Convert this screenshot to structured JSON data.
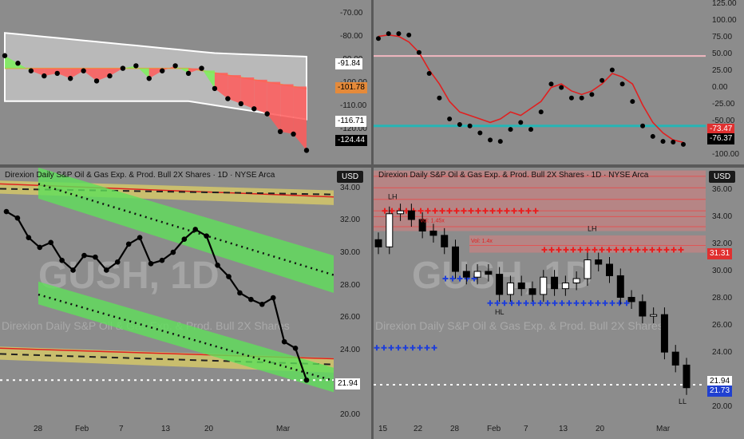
{
  "tl": {
    "ticks": [
      "-70.00",
      "-80.00",
      "-90.00",
      "-100.00",
      "-110.00",
      "-120.00"
    ],
    "tags": [
      {
        "text": "-91.84",
        "bg": "#ffffff",
        "fg": "#000000"
      },
      {
        "text": "-101.78",
        "bg": "#e58a3a",
        "fg": "#000000"
      },
      {
        "text": "-116.71",
        "bg": "#ffffff",
        "fg": "#000000"
      },
      {
        "text": "-124.44",
        "bg": "#000000",
        "fg": "#ffffff"
      }
    ]
  },
  "tr": {
    "ticks": [
      "125.00",
      "100.00",
      "75.00",
      "50.00",
      "25.00",
      "0.00",
      "-25.00",
      "-50.00",
      "-75.00",
      "-100.00"
    ],
    "tags": [
      {
        "text": "-73.47",
        "bg": "#e03030",
        "fg": "#ffffff"
      },
      {
        "text": "-76.37",
        "bg": "#000000",
        "fg": "#ffffff"
      }
    ]
  },
  "bl": {
    "title": "Direxion Daily S&P Oil & Gas Exp. & Prod. Bull 2X Shares · 1D · NYSE Arca",
    "currency": "USD",
    "watermark": "GUSH, 1D",
    "watermark_sub": "Direxion Daily S&P Oil & Gas Exp. & Prod. Bull 2X Shares",
    "ticks": [
      "34.00",
      "32.00",
      "30.00",
      "28.00",
      "26.00",
      "24.00",
      "20.00"
    ],
    "price_tag": "21.94",
    "xlabels": [
      "28",
      "Feb",
      "7",
      "13",
      "20",
      "Mar"
    ]
  },
  "br": {
    "title": "Direxion Daily S&P Oil & Gas Exp. & Prod. Bull 2X Shares · 1D · NYSE Arca",
    "currency": "USD",
    "watermark": "GUSH, 1D",
    "watermark_sub": "Direxion Daily S&P Oil & Gas Exp. & Prod. Bull 2X Shares",
    "ticks": [
      "36.00",
      "34.00",
      "32.00",
      "30.00",
      "28.00",
      "26.00",
      "24.00",
      "22.00",
      "20.00"
    ],
    "tags": [
      {
        "text": "31.31",
        "bg": "#e03030",
        "fg": "#ffffff"
      },
      {
        "text": "21.94",
        "bg": "#ffffff",
        "fg": "#000000"
      },
      {
        "text": "21.73",
        "bg": "#2040d0",
        "fg": "#ffffff"
      }
    ],
    "annotations": {
      "lh1": "LH",
      "lh2": "LH",
      "hl": "HL",
      "ll": "LL",
      "vol1": "Vol: 1.45x",
      "vol2": "Vol: 1.4x"
    },
    "xlabels": [
      "15",
      "22",
      "28",
      "Feb",
      "7",
      "13",
      "20",
      "Mar"
    ]
  },
  "chart_data": [
    {
      "type": "area",
      "title": "",
      "ylim": [
        -130,
        -65
      ],
      "series": [
        {
          "name": "",
          "values": [
            -87,
            -90,
            -93,
            -95,
            -94,
            -96,
            -93,
            -97,
            -95,
            -92,
            -91,
            -96,
            -93,
            -91,
            -94,
            -92,
            -100,
            -104,
            -106,
            -108,
            -110,
            -117,
            -118,
            -124.44
          ]
        }
      ]
    },
    {
      "type": "line",
      "title": "",
      "ylim": [
        -105,
        130
      ],
      "levels": [
        50,
        -50
      ],
      "series": [
        {
          "name": "",
          "values": [
            78,
            80,
            78,
            70,
            55,
            30,
            10,
            -15,
            -30,
            -35,
            -40,
            -45,
            -40,
            -30,
            -35,
            -25,
            -15,
            5,
            10,
            0,
            -5,
            0,
            10,
            25,
            20,
            10,
            -20,
            -45,
            -60,
            -70,
            -73.47
          ]
        },
        {
          "name": "",
          "values": [
            75,
            82,
            82,
            80,
            55,
            25,
            -10,
            -40,
            -48,
            -50,
            -60,
            -70,
            -72,
            -55,
            -45,
            -55,
            -30,
            10,
            5,
            -10,
            -10,
            -5,
            15,
            30,
            10,
            -15,
            -50,
            -65,
            -72,
            -73,
            -76.37
          ]
        }
      ]
    },
    {
      "type": "line",
      "title": "Direxion Daily S&P Oil & Gas Exp. & Prod. Bull 2X Shares · 1D · NYSE Arca",
      "ylim": [
        19.5,
        35
      ],
      "series": [
        {
          "name": "",
          "values": [
            32.3,
            31.9,
            30.7,
            30.1,
            30.4,
            29.3,
            28.7,
            29.6,
            29.5,
            28.7,
            29.2,
            30.3,
            30.7,
            29.1,
            29.3,
            29.8,
            30.6,
            31.2,
            30.8,
            29.0,
            28.3,
            27.3,
            26.9,
            26.6,
            27.0,
            24.3,
            23.9,
            21.94
          ]
        }
      ]
    },
    {
      "type": "bar",
      "title": "Direxion Daily S&P Oil & Gas Exp. & Prod. Bull 2X Shares · 1D · NYSE Arca",
      "ylim": [
        19.5,
        37
      ],
      "series": [
        {
          "name": "",
          "values": [
            31.5,
            33.8,
            34.0,
            33.4,
            32.6,
            32.3,
            31.5,
            29.8,
            29.4,
            29.8,
            29.6,
            28.2,
            29.0,
            28.6,
            28.2,
            29.4,
            28.6,
            29.0,
            29.3,
            30.6,
            30.3,
            29.5,
            28.0,
            27.7,
            26.7,
            26.8,
            24.2,
            23.3,
            21.73
          ]
        }
      ]
    }
  ]
}
